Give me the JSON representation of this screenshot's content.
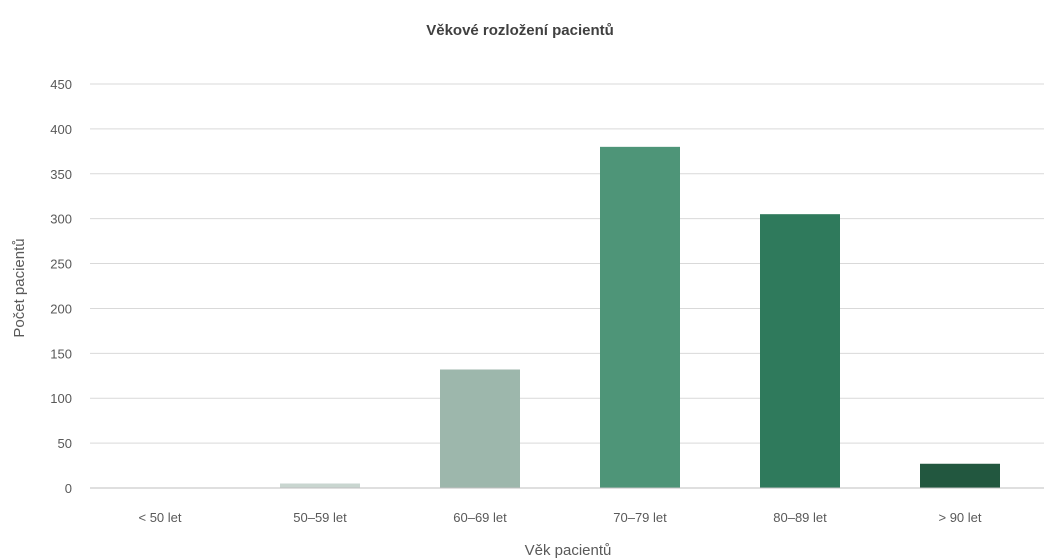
{
  "chart_data": {
    "type": "bar",
    "title": "Věkové rozložení pacientů",
    "xlabel": "Věk pacientů",
    "ylabel": "Počet pacientů",
    "categories": [
      "< 50 let",
      "50–59 let",
      "60–69 let",
      "70–79 let",
      "80–89 let",
      "> 90 let"
    ],
    "values": [
      0,
      5,
      132,
      380,
      305,
      27
    ],
    "colors": [
      "#c9d6d0",
      "#c9d6d0",
      "#9db7ac",
      "#4e9578",
      "#2f7a5c",
      "#22573f"
    ],
    "ylim": [
      0,
      450
    ],
    "yticks": [
      0,
      50,
      100,
      150,
      200,
      250,
      300,
      350,
      400,
      450
    ],
    "grid": true,
    "legend": "none"
  }
}
